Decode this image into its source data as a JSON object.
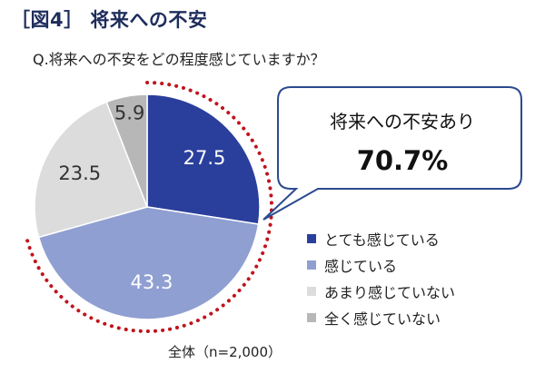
{
  "title": "［図4］ 将来への不安",
  "question": "Q.将来への不安をどの程度感じていますか？",
  "callout": {
    "label": "将来への不安あり",
    "value": "70.7%"
  },
  "footer": "全体（n=2,000）",
  "colors": {
    "very_much": "#2a3f9c",
    "somewhat": "#8f9fd2",
    "not_much": "#dcdcdc",
    "not_at_all": "#b7b7b7",
    "dotted_outline": "#c0141c",
    "callout_border": "#2b4a8f"
  },
  "chart_data": {
    "type": "pie",
    "title": "将来への不安",
    "categories": [
      "とても感じている",
      "感じている",
      "あまり感じていない",
      "全く感じていない"
    ],
    "values": [
      27.5,
      43.3,
      23.5,
      5.9
    ],
    "labels": [
      "27.5",
      "43.3",
      "23.5",
      "5.9"
    ],
    "highlight_group": [
      "とても感じている",
      "感じている"
    ],
    "highlight_total": 70.7,
    "legend_position": "right"
  }
}
